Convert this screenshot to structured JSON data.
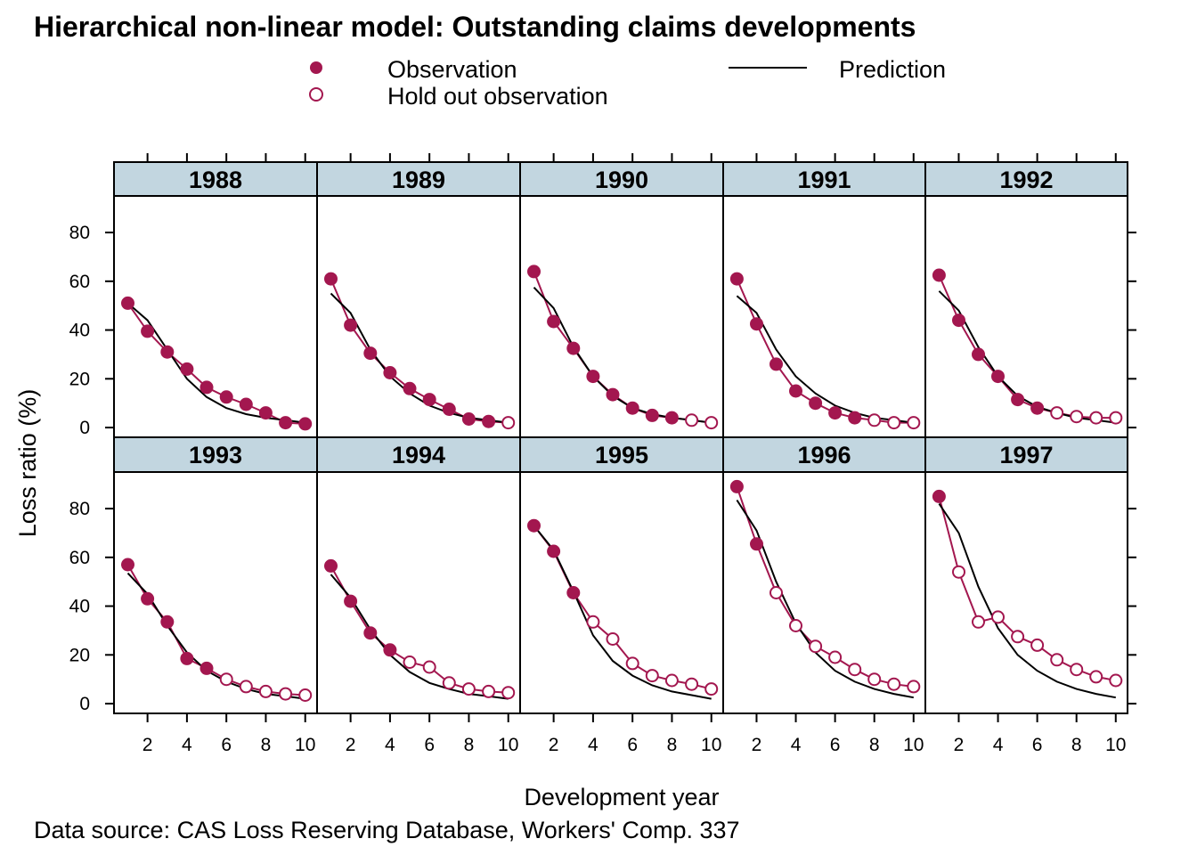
{
  "title": "Hierarchical non-linear model: Outstanding claims developments",
  "source": "Data source: CAS Loss Reserving Database,  Workers' Comp. 337",
  "legend": {
    "observation": "Observation",
    "holdout": "Hold out observation",
    "prediction": "Prediction"
  },
  "colors": {
    "observation": "#A3174F",
    "prediction": "#000000",
    "strip_background": "#C2D6E0"
  },
  "chart_data": {
    "type": "line",
    "layout": "trellis 5 columns x 2 rows",
    "xlabel": "Development year",
    "ylabel": "Loss ratio (%)",
    "xlim": [
      0.3,
      10.6
    ],
    "ylim": [
      -4,
      95
    ],
    "x_ticks": [
      2,
      4,
      6,
      8,
      10
    ],
    "y_ticks": [
      0,
      20,
      40,
      60,
      80
    ],
    "x": [
      1,
      2,
      3,
      4,
      5,
      6,
      7,
      8,
      9,
      10
    ],
    "panels": [
      {
        "year": "1988",
        "observed": [
          51,
          39.5,
          31,
          24,
          16.5,
          12.5,
          9.5,
          6,
          2,
          1.5
        ],
        "n_observed": 10,
        "prediction": [
          51,
          44,
          32,
          20,
          12.5,
          8,
          5.5,
          4,
          3,
          2
        ]
      },
      {
        "year": "1989",
        "observed": [
          61,
          42,
          30.5,
          22.5,
          16,
          11.5,
          7.5,
          3.5,
          2.5,
          2
        ],
        "n_observed": 9,
        "prediction": [
          55,
          47,
          32,
          21,
          14,
          9,
          6,
          4,
          3,
          2
        ]
      },
      {
        "year": "1990",
        "observed": [
          64,
          43.5,
          32.5,
          21,
          13.5,
          8,
          5,
          4,
          3,
          2
        ],
        "n_observed": 8,
        "prediction": [
          57.5,
          49,
          33,
          21,
          13,
          8,
          5.5,
          4,
          3,
          2
        ]
      },
      {
        "year": "1991",
        "observed": [
          61,
          42.5,
          26,
          15,
          10,
          6,
          4,
          3,
          2,
          2
        ],
        "n_observed": 7,
        "prediction": [
          54,
          47,
          32,
          21,
          14,
          9,
          6,
          4,
          3,
          2
        ]
      },
      {
        "year": "1992",
        "observed": [
          62.5,
          44,
          30,
          21,
          11.5,
          8,
          6,
          4.5,
          4,
          4
        ],
        "n_observed": 6,
        "prediction": [
          56,
          48,
          33,
          21,
          13,
          8.5,
          6,
          4,
          3,
          2
        ]
      },
      {
        "year": "1993",
        "observed": [
          57,
          43,
          33.5,
          18.5,
          14.5,
          10,
          7,
          5,
          4,
          3.5
        ],
        "n_observed": 5,
        "prediction": [
          53.5,
          45,
          32,
          21,
          13.5,
          9,
          6,
          4,
          3,
          2
        ]
      },
      {
        "year": "1994",
        "observed": [
          56.5,
          42,
          29,
          22,
          17,
          15,
          8.5,
          6,
          5,
          4.5
        ],
        "n_observed": 4,
        "prediction": [
          53,
          43.5,
          30.5,
          20,
          13,
          8.5,
          6,
          4,
          3,
          2
        ]
      },
      {
        "year": "1995",
        "observed": [
          73,
          62.5,
          45.5,
          33.5,
          26.5,
          16.5,
          11.5,
          9.5,
          8,
          6
        ],
        "n_observed": 3,
        "prediction": [
          73,
          63,
          46,
          28,
          17.5,
          11.5,
          7.5,
          5,
          3.5,
          2
        ]
      },
      {
        "year": "1996",
        "observed": [
          89,
          65.5,
          45.5,
          32,
          23.5,
          19,
          14,
          10,
          8,
          7
        ],
        "n_observed": 2,
        "prediction": [
          83.5,
          71,
          50,
          33,
          21,
          13.5,
          9,
          6,
          4,
          2.5
        ]
      },
      {
        "year": "1997",
        "observed": [
          85,
          54,
          33.5,
          35.5,
          27.5,
          24,
          18,
          14,
          11,
          9.5
        ],
        "n_observed": 1,
        "prediction": [
          82,
          70,
          48,
          31,
          20,
          13.5,
          9,
          6,
          4,
          2.5
        ]
      }
    ]
  }
}
